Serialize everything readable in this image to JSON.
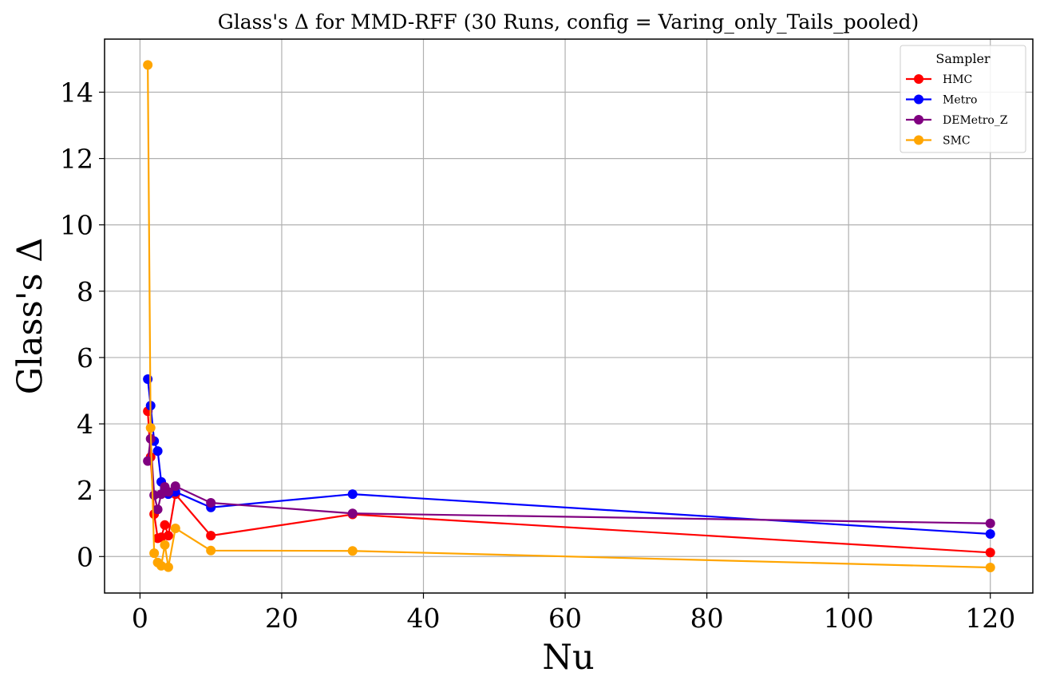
{
  "chart_data": {
    "type": "line",
    "title": "Glass's Δ for MMD-RFF (30 Runs, config = Varing_only_Tails_pooled)",
    "xlabel": "Nu",
    "ylabel": "Glass's Δ",
    "xlim": [
      -5,
      126
    ],
    "ylim": [
      -1.1,
      15.6
    ],
    "xticks": [
      0,
      20,
      40,
      60,
      80,
      100,
      120
    ],
    "yticks": [
      0,
      2,
      4,
      6,
      8,
      10,
      12,
      14
    ],
    "grid": true,
    "legend": {
      "title": "Sampler",
      "placement": "top-right"
    },
    "series": [
      {
        "name": "HMC",
        "color": "#ff0000",
        "x": [
          1.1,
          1.5,
          2,
          2.5,
          3,
          3.5,
          4,
          5,
          10,
          30,
          120
        ],
        "y": [
          4.38,
          3.0,
          1.28,
          0.55,
          0.58,
          0.95,
          0.63,
          1.88,
          0.63,
          1.27,
          0.12
        ]
      },
      {
        "name": "Metro",
        "color": "#0000ff",
        "x": [
          1.1,
          1.5,
          2,
          2.5,
          3,
          3.5,
          4,
          5,
          10,
          30,
          120
        ],
        "y": [
          5.35,
          4.55,
          3.48,
          3.18,
          2.25,
          2.05,
          1.88,
          1.95,
          1.48,
          1.88,
          0.68
        ]
      },
      {
        "name": "DEMetro_Z",
        "color": "#800080",
        "x": [
          1.1,
          1.5,
          2,
          2.5,
          3,
          3.5,
          4,
          5,
          10,
          30,
          120
        ],
        "y": [
          2.88,
          3.55,
          1.85,
          1.42,
          1.88,
          2.1,
          1.95,
          2.12,
          1.62,
          1.3,
          1.0
        ]
      },
      {
        "name": "SMC",
        "color": "#ffa500",
        "x": [
          1.1,
          1.5,
          2,
          2.5,
          3,
          3.5,
          4,
          5,
          10,
          30,
          120
        ],
        "y": [
          14.82,
          3.88,
          0.1,
          -0.18,
          -0.28,
          0.35,
          -0.32,
          0.85,
          0.18,
          0.17,
          -0.33
        ]
      }
    ]
  }
}
